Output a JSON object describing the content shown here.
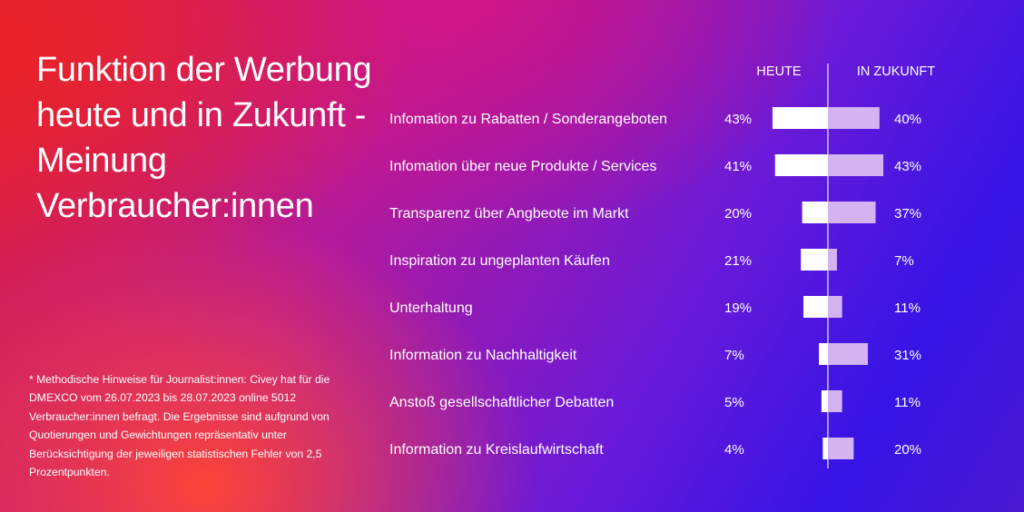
{
  "title": "Funktion der Werbung heute und in Zukunft - Meinung Verbraucher:innen",
  "footnote": "* Methodische Hinweise für Journalist:innen: Civey hat für die DMEXCO vom 26.07.2023 bis 28.07.2023 online 5012 Verbraucher:innen befragt. Die Ergebnisse sind aufgrund von Quotierungen und Gewichtungen repräsentativ unter Berücksichtigung der jeweiligen statistischen Fehler von 2,5 Prozentpunkten.",
  "colors": {
    "heute": "#ffffff",
    "zukunft": "#d4b4f0",
    "divider": "#cfc0f5"
  },
  "chart_data": {
    "type": "bar",
    "categories": [
      "Infomation zu Rabatten / Sonderangeboten",
      "Infomation über neue Produkte / Services",
      "Transparenz über Angbeote im Markt",
      "Inspiration zu ungeplanten Käufen",
      "Unterhaltung",
      "Information zu Nachhaltigkeit",
      "Anstoß gesellschaftlicher Debatten",
      "Information zu Kreislaufwirtschaft"
    ],
    "series": [
      {
        "name": "HEUTE",
        "values": [
          43,
          41,
          20,
          21,
          19,
          7,
          5,
          4
        ],
        "labels": [
          "43%",
          "41%",
          "20%",
          "21%",
          "19%",
          "7%",
          "5%",
          "4%"
        ]
      },
      {
        "name": "IN ZUKUNFT",
        "values": [
          40,
          43,
          37,
          7,
          11,
          31,
          11,
          20
        ],
        "labels": [
          "40%",
          "43%",
          "37%",
          "7%",
          "11%",
          "31%",
          "11%",
          "20%"
        ]
      }
    ],
    "orientation": "horizontal-diverging",
    "legend": "top"
  }
}
